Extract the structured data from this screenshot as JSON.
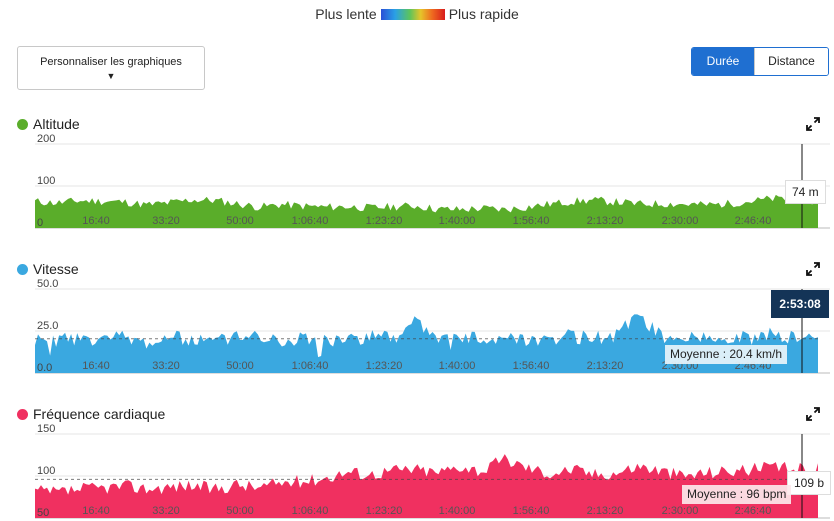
{
  "legend": {
    "slow": "Plus lente",
    "fast": "Plus rapide"
  },
  "controls": {
    "customize_label": "Personnaliser les graphiques",
    "toggle": {
      "duration": "Durée",
      "distance": "Distance"
    }
  },
  "colors": {
    "altitude": "#5aad2a",
    "speed": "#3aa8e0",
    "heart": "#f03060",
    "active": "#1f6fd1",
    "badge": "#143457"
  },
  "cursor": {
    "time": "2:53:08"
  },
  "x_ticks": [
    "16:40",
    "33:20",
    "50:00",
    "1:06:40",
    "1:23:20",
    "1:40:00",
    "1:56:40",
    "2:13:20",
    "2:30:00",
    "2:46:40"
  ],
  "chart_data": [
    {
      "type": "area",
      "title": "Altitude",
      "y_ticks": [
        "200",
        "100",
        "0"
      ],
      "ylim": [
        0,
        200
      ],
      "tooltip": "74 m",
      "x": [
        0,
        300,
        600,
        900,
        1200,
        1500,
        1800,
        2100,
        2400,
        2700,
        3000,
        3300,
        3600,
        3900,
        4200,
        4500,
        4800,
        5100,
        5400,
        5700,
        6000,
        6300,
        6600,
        6900,
        7200,
        7500,
        7800,
        8100,
        8400,
        8700,
        9000,
        9300,
        9600,
        9900,
        10200,
        10500
      ],
      "values": [
        63,
        60,
        65,
        64,
        62,
        55,
        60,
        67,
        66,
        58,
        50,
        56,
        52,
        50,
        51,
        48,
        51,
        53,
        45,
        44,
        47,
        44,
        50,
        57,
        63,
        66,
        62,
        57,
        58,
        57,
        55,
        58,
        64,
        70,
        68,
        63
      ]
    },
    {
      "type": "area",
      "title": "Vitesse",
      "y_ticks": [
        "50.0",
        "25.0",
        "0.0"
      ],
      "ylim": [
        0,
        50
      ],
      "average": "Moyenne : 20.4 km/h",
      "average_value": 20.4,
      "x": [
        0,
        300,
        600,
        900,
        1200,
        1500,
        1800,
        2100,
        2400,
        2700,
        3000,
        3300,
        3600,
        3900,
        4200,
        4500,
        4800,
        5100,
        5400,
        5700,
        6000,
        6300,
        6600,
        6900,
        7200,
        7500,
        7800,
        8100,
        8400,
        8700,
        9000,
        9300,
        9600,
        9900,
        10200,
        10500
      ],
      "values": [
        20,
        19,
        21,
        20,
        22,
        18,
        21,
        20,
        19,
        21,
        22,
        20,
        21,
        19,
        20,
        22,
        21,
        30,
        21,
        20,
        21,
        22,
        20,
        21,
        22,
        21,
        22,
        36,
        21,
        20,
        21,
        22,
        21,
        23,
        21,
        20
      ]
    },
    {
      "type": "area",
      "title": "Fréquence cardiaque",
      "y_ticks": [
        "150",
        "100",
        "50"
      ],
      "ylim": [
        50,
        150
      ],
      "tooltip": "109 b",
      "average": "Moyenne : 96 bpm",
      "average_value": 96,
      "x": [
        0,
        300,
        600,
        900,
        1200,
        1500,
        1800,
        2100,
        2400,
        2700,
        3000,
        3300,
        3600,
        3900,
        4200,
        4500,
        4800,
        5100,
        5400,
        5700,
        6000,
        6300,
        6600,
        6900,
        7200,
        7500,
        7800,
        8100,
        8400,
        8700,
        9000,
        9300,
        9600,
        9900,
        10200,
        10500
      ],
      "values": [
        82,
        80,
        84,
        86,
        88,
        85,
        87,
        89,
        84,
        90,
        86,
        92,
        94,
        98,
        105,
        102,
        107,
        108,
        104,
        112,
        106,
        120,
        110,
        103,
        108,
        102,
        104,
        112,
        106,
        100,
        104,
        106,
        108,
        110,
        108,
        108
      ]
    }
  ]
}
